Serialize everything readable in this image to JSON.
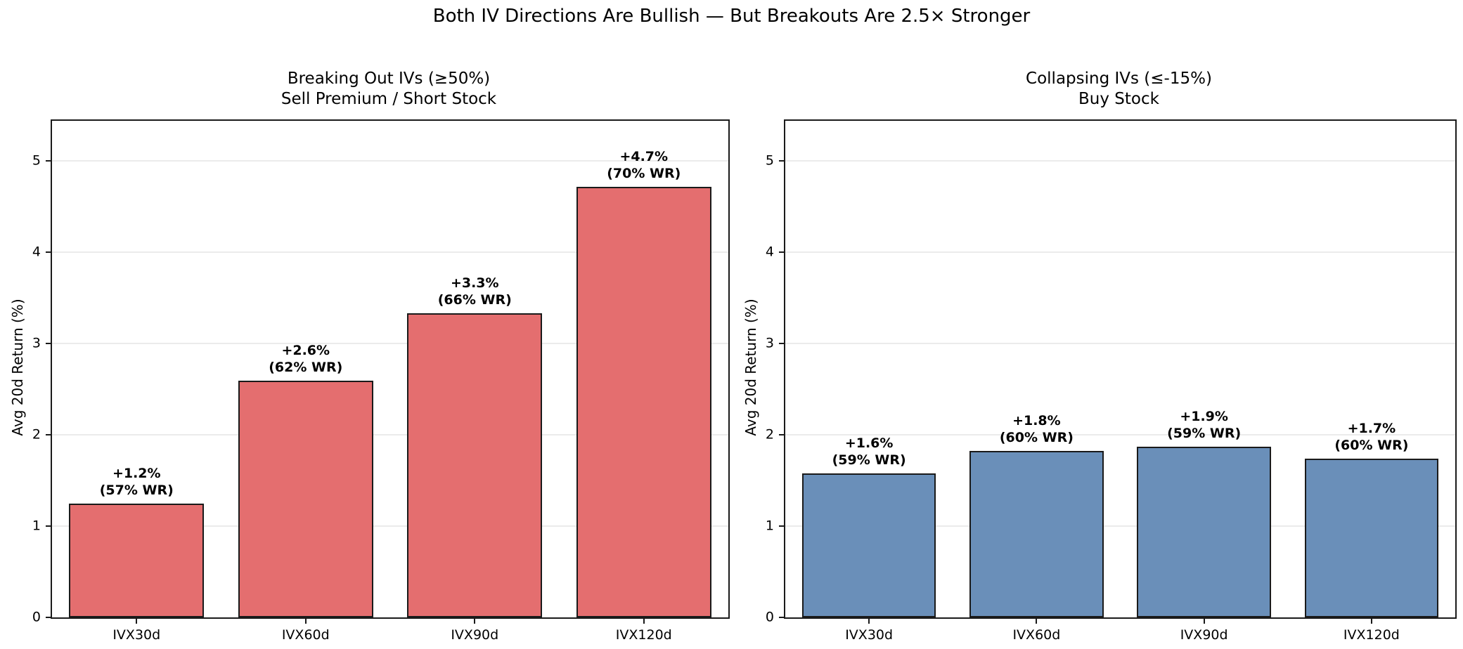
{
  "figure": {
    "title": "Both IV Directions Are Bullish — But Breakouts Are 2.5× Stronger",
    "background": "#ffffff"
  },
  "chart_data": [
    {
      "type": "bar",
      "title": "Breaking Out IVs (≥50%)\nSell Premium / Short Stock",
      "categories": [
        "IVX30d",
        "IVX60d",
        "IVX90d",
        "IVX120d"
      ],
      "values": [
        1.25,
        2.59,
        3.33,
        4.72
      ],
      "annotations": [
        [
          "+1.2%",
          "(57% WR)"
        ],
        [
          "+2.6%",
          "(62% WR)"
        ],
        [
          "+3.3%",
          "(66% WR)"
        ],
        [
          "+4.7%",
          "(70% WR)"
        ]
      ],
      "ylabel": "Avg 20d Return (%)",
      "ylim": [
        0,
        5.44
      ],
      "yticks": [
        0,
        1,
        2,
        3,
        4,
        5
      ],
      "grid": true,
      "legend": "none",
      "bar_color": "#e46e6f",
      "bar_edge_color": "#1a1a1a",
      "bar_width_fraction": 0.8
    },
    {
      "type": "bar",
      "title": "Collapsing IVs (≤-15%)\nBuy Stock",
      "categories": [
        "IVX30d",
        "IVX60d",
        "IVX90d",
        "IVX120d"
      ],
      "values": [
        1.58,
        1.82,
        1.87,
        1.74
      ],
      "annotations": [
        [
          "+1.6%",
          "(59% WR)"
        ],
        [
          "+1.8%",
          "(60% WR)"
        ],
        [
          "+1.9%",
          "(59% WR)"
        ],
        [
          "+1.7%",
          "(60% WR)"
        ]
      ],
      "ylabel": "Avg 20d Return (%)",
      "ylim": [
        0,
        5.44
      ],
      "yticks": [
        0,
        1,
        2,
        3,
        4,
        5
      ],
      "grid": true,
      "legend": "none",
      "bar_color": "#6a8fb9",
      "bar_edge_color": "#1a1a1a",
      "bar_width_fraction": 0.8
    }
  ]
}
